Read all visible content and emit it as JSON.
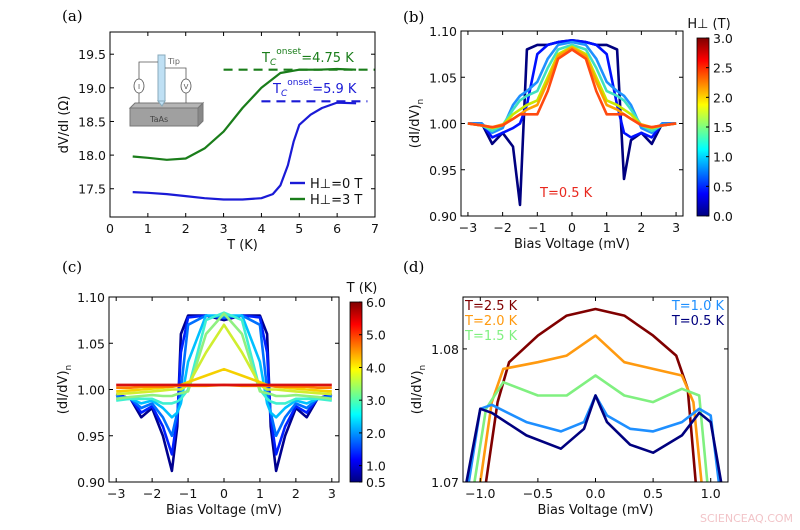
{
  "watermark": "SCIENCEAQ.COM",
  "chart_data": [
    {
      "panel": "(a)",
      "type": "line",
      "xlabel": "T (K)",
      "ylabel": "dV/dI (Ω)",
      "xlim": [
        0,
        7
      ],
      "ylim": [
        17.08,
        19.83
      ],
      "xticks": [
        0,
        1,
        2,
        3,
        4,
        5,
        6,
        7
      ],
      "xticklabels": [
        "0",
        "1",
        "2",
        "3",
        "4",
        "5",
        "6",
        "7"
      ],
      "yticks": [
        17.5,
        18.0,
        18.5,
        19.0,
        19.5
      ],
      "yticklabels": [
        "17.5",
        "18.0",
        "18.5",
        "19.0",
        "19.5"
      ],
      "grid": false,
      "legend_position": "bottom-right",
      "series": [
        {
          "name": "H⊥=0 T",
          "color": "#1a1ad6",
          "x": [
            0.6,
            1,
            1.5,
            2,
            2.5,
            3,
            3.5,
            4,
            4.3,
            4.5,
            4.7,
            4.85,
            5,
            5.3,
            5.6,
            6,
            6.5
          ],
          "y": [
            17.45,
            17.44,
            17.42,
            17.39,
            17.36,
            17.34,
            17.34,
            17.36,
            17.42,
            17.55,
            17.85,
            18.2,
            18.45,
            18.6,
            18.7,
            18.78,
            18.77
          ]
        },
        {
          "name": "H⊥=3 T",
          "color": "#1a7d1a",
          "x": [
            0.6,
            1,
            1.5,
            2,
            2.5,
            3,
            3.5,
            4,
            4.5,
            5,
            5.5,
            6,
            6.5
          ],
          "y": [
            17.98,
            17.96,
            17.93,
            17.95,
            18.1,
            18.35,
            18.7,
            19.0,
            19.22,
            19.27,
            19.27,
            19.28,
            19.27
          ]
        }
      ],
      "reference_lines": [
        {
          "color": "#1a7d1a",
          "y": 19.27,
          "x": [
            3,
            7
          ],
          "style": "dashed"
        },
        {
          "color": "#1a1ad6",
          "y": 18.8,
          "x": [
            4,
            6.8
          ],
          "style": "dashed"
        }
      ],
      "annotations": [
        {
          "base": "T",
          "sub": "C",
          "sup": "onset",
          "text": "=4.75 K",
          "color": "#1a7d1a"
        },
        {
          "base": "T",
          "sub": "C",
          "sup": "onset",
          "text": "=5.9 K",
          "color": "#1a1ad6"
        }
      ],
      "inset": {
        "tip_label": "Tip",
        "sample_label": "TaAs",
        "current_meter": "I",
        "voltage_meter": "V"
      }
    },
    {
      "panel": "(b)",
      "type": "line",
      "xlabel": "Bias Voltage (mV)",
      "ylabel": "(dI/dV)",
      "ylabel_sub": "n",
      "xlim": [
        -3.2,
        3.2
      ],
      "ylim": [
        0.9,
        1.1
      ],
      "xticks": [
        -3,
        -2,
        -1,
        0,
        1,
        2,
        3
      ],
      "xticklabels": [
        "−3",
        "−2",
        "−1",
        "0",
        "1",
        "2",
        "3"
      ],
      "yticks": [
        0.9,
        0.95,
        1.0,
        1.05,
        1.1
      ],
      "yticklabels": [
        "0.90",
        "0.95",
        "1.00",
        "1.05",
        "1.10"
      ],
      "grid": false,
      "annotation": {
        "text": "T=0.5 K",
        "color": "#e8281e"
      },
      "colorbar": {
        "label": "H⊥ (T)",
        "colormap": "jet",
        "range": [
          0,
          3
        ],
        "ticks": [
          0,
          0.5,
          1,
          1.5,
          2,
          2.5,
          3
        ],
        "ticklabels": [
          "0.0",
          "0.5",
          "1.0",
          "1.5",
          "2.0",
          "2.5",
          "3.0"
        ]
      },
      "x": [
        -3,
        -2.6,
        -2.3,
        -2,
        -1.7,
        -1.5,
        -1.3,
        -1,
        -0.7,
        -0.4,
        0,
        0.4,
        0.7,
        1,
        1.3,
        1.5,
        1.7,
        2,
        2.3,
        2.6,
        3
      ],
      "series": [
        {
          "field": 0,
          "color": "#00007f",
          "y": [
            1.0,
            1.0,
            0.978,
            0.99,
            0.975,
            0.912,
            1.08,
            1.085,
            1.085,
            1.088,
            1.09,
            1.088,
            1.085,
            1.085,
            1.08,
            0.94,
            0.982,
            0.99,
            0.978,
            1.0,
            1.0
          ]
        },
        {
          "field": 0.3,
          "color": "#0010ff",
          "y": [
            1.0,
            1.0,
            0.985,
            0.99,
            0.995,
            1.0,
            1.02,
            1.075,
            1.085,
            1.088,
            1.09,
            1.088,
            1.085,
            1.075,
            1.02,
            0.99,
            0.985,
            0.99,
            0.985,
            1.0,
            1.0
          ]
        },
        {
          "field": 1.0,
          "color": "#1e90ff",
          "y": [
            1.0,
            1.0,
            0.99,
            0.995,
            1.02,
            1.03,
            1.035,
            1.045,
            1.07,
            1.085,
            1.088,
            1.085,
            1.07,
            1.045,
            1.035,
            1.03,
            1.02,
            0.995,
            0.99,
            1.0,
            1.0
          ]
        },
        {
          "field": 1.5,
          "color": "#40e0c0",
          "y": [
            1.0,
            0.998,
            0.992,
            0.998,
            1.015,
            1.025,
            1.03,
            1.035,
            1.06,
            1.08,
            1.085,
            1.08,
            1.06,
            1.035,
            1.03,
            1.025,
            1.015,
            0.998,
            0.992,
            0.998,
            1.0
          ]
        },
        {
          "field": 2.0,
          "color": "#c8e800",
          "y": [
            1.0,
            0.998,
            0.995,
            0.998,
            1.01,
            1.015,
            1.02,
            1.025,
            1.05,
            1.075,
            1.083,
            1.075,
            1.05,
            1.025,
            1.02,
            1.015,
            1.01,
            0.998,
            0.995,
            0.998,
            1.0
          ]
        },
        {
          "field": 2.5,
          "color": "#ffa000",
          "y": [
            1.0,
            0.998,
            0.996,
            0.999,
            1.005,
            1.01,
            1.015,
            1.02,
            1.045,
            1.073,
            1.082,
            1.073,
            1.045,
            1.02,
            1.015,
            1.01,
            1.005,
            0.999,
            0.996,
            0.998,
            1.0
          ]
        },
        {
          "field": 3.0,
          "color": "#ff4a10",
          "y": [
            1.0,
            0.998,
            0.996,
            0.998,
            1.005,
            1.01,
            1.01,
            1.01,
            1.035,
            1.07,
            1.08,
            1.07,
            1.035,
            1.01,
            1.01,
            1.01,
            1.005,
            0.998,
            0.996,
            0.998,
            1.0
          ]
        }
      ]
    },
    {
      "panel": "(c)",
      "type": "line",
      "xlabel": "Bias Voltage (mV)",
      "ylabel": "(dI/dV)",
      "ylabel_sub": "n",
      "xlim": [
        -3.2,
        3.2
      ],
      "ylim": [
        0.9,
        1.1
      ],
      "xticks": [
        -3,
        -2,
        -1,
        0,
        1,
        2,
        3
      ],
      "xticklabels": [
        "−3",
        "−2",
        "−1",
        "0",
        "1",
        "2",
        "3"
      ],
      "yticks": [
        0.9,
        0.95,
        1.0,
        1.05,
        1.1
      ],
      "yticklabels": [
        "0.90",
        "0.95",
        "1.00",
        "1.05",
        "1.10"
      ],
      "grid": false,
      "colorbar": {
        "label": "T (K)",
        "colormap": "jet",
        "range": [
          0.5,
          6
        ],
        "ticks": [
          0.5,
          1,
          2,
          3,
          4,
          5,
          6
        ],
        "ticklabels": [
          "0.5",
          "1.0",
          "2.0",
          "3.0",
          "4.0",
          "5.0",
          "6.0"
        ]
      },
      "x": [
        -3,
        -2.6,
        -2.3,
        -2,
        -1.7,
        -1.45,
        -1.3,
        -1.2,
        -1,
        -0.5,
        0,
        0.5,
        1,
        1.2,
        1.3,
        1.45,
        1.7,
        2,
        2.3,
        2.6,
        3
      ],
      "series": [
        {
          "temperature": 0.5,
          "color": "#00008f",
          "y": [
            0.995,
            0.99,
            0.97,
            0.98,
            0.95,
            0.912,
            0.96,
            1.06,
            1.08,
            1.08,
            1.075,
            1.08,
            1.08,
            1.06,
            0.96,
            0.912,
            0.95,
            0.98,
            0.97,
            0.99,
            0.995
          ]
        },
        {
          "temperature": 1.0,
          "color": "#0020ff",
          "y": [
            0.995,
            0.99,
            0.975,
            0.982,
            0.96,
            0.93,
            0.97,
            1.04,
            1.078,
            1.08,
            1.077,
            1.08,
            1.078,
            1.04,
            0.97,
            0.93,
            0.96,
            0.982,
            0.975,
            0.99,
            0.995
          ]
        },
        {
          "temperature": 1.5,
          "color": "#0070ff",
          "y": [
            0.993,
            0.99,
            0.98,
            0.985,
            0.97,
            0.95,
            0.975,
            1.0,
            1.07,
            1.08,
            1.078,
            1.08,
            1.07,
            1.0,
            0.975,
            0.95,
            0.97,
            0.985,
            0.98,
            0.99,
            0.993
          ]
        },
        {
          "temperature": 2.0,
          "color": "#00c0ff",
          "y": [
            0.99,
            0.99,
            0.985,
            0.988,
            0.98,
            0.97,
            0.975,
            0.985,
            1.03,
            1.08,
            1.08,
            1.08,
            1.03,
            0.985,
            0.975,
            0.97,
            0.98,
            0.988,
            0.985,
            0.99,
            0.99
          ]
        },
        {
          "temperature": 2.5,
          "color": "#40f0d0",
          "y": [
            0.988,
            0.99,
            0.99,
            0.99,
            0.985,
            0.985,
            0.987,
            0.99,
            1.0,
            1.075,
            1.083,
            1.075,
            1.0,
            0.99,
            0.987,
            0.985,
            0.985,
            0.99,
            0.99,
            0.99,
            0.988
          ]
        },
        {
          "temperature": 3.0,
          "color": "#90f080",
          "y": [
            0.99,
            0.992,
            0.993,
            0.994,
            0.993,
            0.993,
            0.995,
            0.996,
            0.998,
            1.06,
            1.082,
            1.06,
            0.998,
            0.996,
            0.995,
            0.993,
            0.993,
            0.994,
            0.993,
            0.992,
            0.99
          ]
        },
        {
          "temperature": 3.5,
          "color": "#d0ee30",
          "y": [
            0.995,
            0.996,
            0.997,
            0.998,
            0.999,
            1.0,
            1.0,
            1.0,
            1.005,
            1.04,
            1.07,
            1.04,
            1.005,
            1.0,
            1.0,
            1.0,
            0.999,
            0.998,
            0.997,
            0.996,
            0.995
          ]
        },
        {
          "temperature": 4.0,
          "color": "#f5d000",
          "y": [
            0.998,
            0.999,
            1.0,
            1.001,
            1.002,
            1.003,
            1.004,
            1.005,
            1.008,
            1.015,
            1.022,
            1.015,
            1.008,
            1.005,
            1.004,
            1.003,
            1.002,
            1.001,
            1.0,
            0.999,
            0.998
          ]
        },
        {
          "temperature": 5.0,
          "color": "#ff8000",
          "y": [
            1.002,
            1.002,
            1.003,
            1.003,
            1.003,
            1.003,
            1.004,
            1.004,
            1.004,
            1.004,
            1.005,
            1.004,
            1.004,
            1.004,
            1.004,
            1.003,
            1.003,
            1.003,
            1.003,
            1.002,
            1.002
          ]
        },
        {
          "temperature": 6.0,
          "color": "#d81010",
          "y": [
            1.005,
            1.005,
            1.005,
            1.005,
            1.005,
            1.005,
            1.005,
            1.005,
            1.005,
            1.005,
            1.005,
            1.005,
            1.005,
            1.005,
            1.005,
            1.005,
            1.005,
            1.005,
            1.005,
            1.005,
            1.005
          ]
        }
      ]
    },
    {
      "panel": "(d)",
      "type": "line",
      "xlabel": "Bias Voltage (mV)",
      "ylabel": "(dI/dV)",
      "ylabel_sub": "n",
      "xlim": [
        -1.15,
        1.15
      ],
      "ylim": [
        1.07,
        1.0839
      ],
      "xticks": [
        -1,
        -0.5,
        0,
        0.5,
        1
      ],
      "xticklabels": [
        "−1.0",
        "−0.5",
        "0.0",
        "0.5",
        "1.0"
      ],
      "yticks": [
        1.07,
        1.08
      ],
      "yticklabels": [
        "1.07",
        "1.08"
      ],
      "grid": false,
      "series": [
        {
          "name": "T=2.5 K",
          "color": "#800000",
          "legend": "top-left",
          "x": [
            -0.95,
            -0.85,
            -0.75,
            -0.5,
            -0.25,
            0,
            0.25,
            0.5,
            0.7,
            0.8,
            0.87
          ],
          "y": [
            1.07,
            1.076,
            1.079,
            1.081,
            1.0825,
            1.083,
            1.0825,
            1.081,
            1.0795,
            1.077,
            1.07
          ]
        },
        {
          "name": "T=2.0 K",
          "color": "#ff9a10",
          "legend": "top-left",
          "x": [
            -1.0,
            -0.9,
            -0.8,
            -0.5,
            -0.25,
            0,
            0.25,
            0.5,
            0.75,
            0.85,
            0.92
          ],
          "y": [
            1.07,
            1.076,
            1.0785,
            1.079,
            1.0795,
            1.081,
            1.079,
            1.0785,
            1.078,
            1.076,
            1.07
          ]
        },
        {
          "name": "T=1.5 K",
          "color": "#80f080",
          "legend": "top-left",
          "x": [
            -1.05,
            -0.95,
            -0.8,
            -0.5,
            -0.25,
            0,
            0.25,
            0.5,
            0.75,
            0.9,
            0.97
          ],
          "y": [
            1.07,
            1.0755,
            1.0775,
            1.0765,
            1.0765,
            1.078,
            1.0765,
            1.076,
            1.077,
            1.0765,
            1.07
          ]
        },
        {
          "name": "T=1.0 K",
          "color": "#1e8fff",
          "legend": "top-right",
          "x": [
            -1.1,
            -1.0,
            -0.9,
            -0.6,
            -0.3,
            -0.1,
            0,
            0.1,
            0.3,
            0.5,
            0.75,
            0.9,
            1.0,
            1.07
          ],
          "y": [
            1.07,
            1.0755,
            1.0758,
            1.0745,
            1.0738,
            1.0745,
            1.0765,
            1.075,
            1.074,
            1.0738,
            1.0745,
            1.0755,
            1.075,
            1.07
          ]
        },
        {
          "name": "T=0.5 K",
          "color": "#00007f",
          "legend": "top-right",
          "x": [
            -1.12,
            -1.0,
            -0.9,
            -0.6,
            -0.3,
            -0.1,
            0,
            0.1,
            0.3,
            0.5,
            0.75,
            0.9,
            1.0,
            1.09
          ],
          "y": [
            1.07,
            1.0755,
            1.0752,
            1.0735,
            1.0725,
            1.074,
            1.0765,
            1.0745,
            1.0728,
            1.0722,
            1.0735,
            1.0752,
            1.0745,
            1.07
          ]
        }
      ]
    }
  ]
}
